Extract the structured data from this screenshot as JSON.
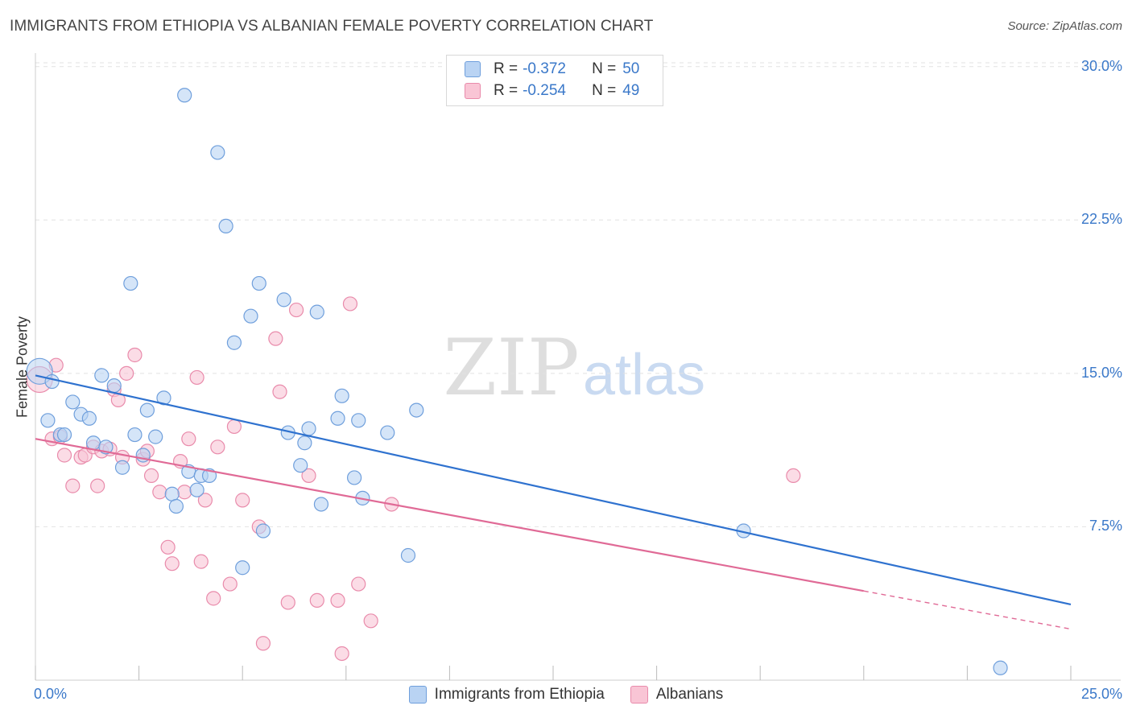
{
  "title": "IMMIGRANTS FROM ETHIOPIA VS ALBANIAN FEMALE POVERTY CORRELATION CHART",
  "source": "Source: ZipAtlas.com",
  "watermark": {
    "zip": "ZIP",
    "atlas": "atlas"
  },
  "legend_top": [
    {
      "r_label": "R =",
      "r_value": "-0.372",
      "n_label": "N =",
      "n_value": "50"
    },
    {
      "r_label": "R =",
      "r_value": "-0.254",
      "n_label": "N =",
      "n_value": "49"
    }
  ],
  "colors": {
    "ethiopia_fill": "#b9d3f3",
    "ethiopia_stroke": "#6f9fdc",
    "ethiopia_line": "#2f72cf",
    "albanian_fill": "#f9c5d5",
    "albanian_stroke": "#e98bab",
    "albanian_line": "#e06a96",
    "tick_text": "#3a78c9"
  },
  "chart_data": {
    "type": "scatter",
    "xlabel": "",
    "ylabel": "Female Poverty",
    "xlim": [
      0,
      25
    ],
    "ylim": [
      0,
      30.5
    ],
    "x_tick_labels": [
      "0.0%",
      "25.0%"
    ],
    "y_ticks": [
      7.5,
      15.0,
      22.5,
      30.0
    ],
    "y_tick_labels": [
      "7.5%",
      "15.0%",
      "22.5%",
      "30.0%"
    ],
    "grid": true,
    "legend_position": "top-center",
    "series": [
      {
        "name": "Immigrants from Ethiopia",
        "points": [
          [
            0.1,
            15.1
          ],
          [
            0.3,
            12.7
          ],
          [
            0.4,
            14.6
          ],
          [
            0.6,
            12.0
          ],
          [
            0.7,
            12.0
          ],
          [
            0.9,
            13.6
          ],
          [
            1.1,
            13.0
          ],
          [
            1.3,
            12.8
          ],
          [
            1.4,
            11.6
          ],
          [
            1.6,
            14.9
          ],
          [
            1.7,
            11.4
          ],
          [
            1.9,
            14.4
          ],
          [
            2.1,
            10.4
          ],
          [
            2.3,
            19.4
          ],
          [
            2.4,
            12.0
          ],
          [
            2.6,
            11.0
          ],
          [
            2.7,
            13.2
          ],
          [
            2.9,
            11.9
          ],
          [
            3.1,
            13.8
          ],
          [
            3.3,
            9.1
          ],
          [
            3.4,
            8.5
          ],
          [
            3.6,
            28.6
          ],
          [
            3.7,
            10.2
          ],
          [
            3.9,
            9.3
          ],
          [
            4.0,
            10.0
          ],
          [
            4.2,
            10.0
          ],
          [
            4.4,
            25.8
          ],
          [
            4.6,
            22.2
          ],
          [
            4.8,
            16.5
          ],
          [
            5.0,
            5.5
          ],
          [
            5.2,
            17.8
          ],
          [
            5.4,
            19.4
          ],
          [
            5.5,
            7.3
          ],
          [
            6.0,
            18.6
          ],
          [
            6.1,
            12.1
          ],
          [
            6.4,
            10.5
          ],
          [
            6.5,
            11.6
          ],
          [
            6.6,
            12.3
          ],
          [
            6.8,
            18.0
          ],
          [
            6.9,
            8.6
          ],
          [
            7.3,
            12.8
          ],
          [
            7.4,
            13.9
          ],
          [
            7.7,
            9.9
          ],
          [
            7.8,
            12.7
          ],
          [
            7.9,
            8.9
          ],
          [
            8.5,
            12.1
          ],
          [
            9.0,
            6.1
          ],
          [
            9.2,
            13.2
          ],
          [
            17.1,
            7.3
          ],
          [
            23.3,
            0.6
          ]
        ],
        "trend": {
          "x": [
            0,
            25
          ],
          "y": [
            14.9,
            3.7
          ]
        }
      },
      {
        "name": "Albanians",
        "points": [
          [
            0.1,
            14.7
          ],
          [
            0.4,
            11.8
          ],
          [
            0.5,
            15.4
          ],
          [
            0.6,
            11.9
          ],
          [
            0.7,
            11.0
          ],
          [
            0.9,
            9.5
          ],
          [
            1.1,
            10.9
          ],
          [
            1.2,
            11.0
          ],
          [
            1.4,
            11.4
          ],
          [
            1.5,
            9.5
          ],
          [
            1.6,
            11.2
          ],
          [
            1.8,
            11.3
          ],
          [
            1.9,
            14.2
          ],
          [
            2.0,
            13.7
          ],
          [
            2.1,
            10.9
          ],
          [
            2.2,
            15.0
          ],
          [
            2.4,
            15.9
          ],
          [
            2.6,
            10.8
          ],
          [
            2.7,
            11.2
          ],
          [
            2.8,
            10.0
          ],
          [
            3.0,
            9.2
          ],
          [
            3.2,
            6.5
          ],
          [
            3.3,
            5.7
          ],
          [
            3.5,
            10.7
          ],
          [
            3.6,
            9.2
          ],
          [
            3.7,
            11.8
          ],
          [
            3.9,
            14.8
          ],
          [
            4.0,
            5.8
          ],
          [
            4.1,
            8.8
          ],
          [
            4.3,
            4.0
          ],
          [
            4.4,
            11.4
          ],
          [
            4.7,
            4.7
          ],
          [
            4.8,
            12.4
          ],
          [
            5.0,
            8.8
          ],
          [
            5.4,
            7.5
          ],
          [
            5.5,
            1.8
          ],
          [
            5.8,
            16.7
          ],
          [
            5.9,
            14.1
          ],
          [
            6.1,
            3.8
          ],
          [
            6.3,
            18.1
          ],
          [
            6.6,
            10.0
          ],
          [
            6.8,
            3.9
          ],
          [
            7.3,
            3.9
          ],
          [
            7.4,
            1.3
          ],
          [
            7.6,
            18.4
          ],
          [
            7.8,
            4.7
          ],
          [
            8.1,
            2.9
          ],
          [
            8.6,
            8.6
          ],
          [
            18.3,
            10.0
          ]
        ],
        "trend": {
          "x": [
            0,
            25
          ],
          "y": [
            11.8,
            2.5
          ],
          "solid_until_x": 20.0
        }
      }
    ]
  }
}
